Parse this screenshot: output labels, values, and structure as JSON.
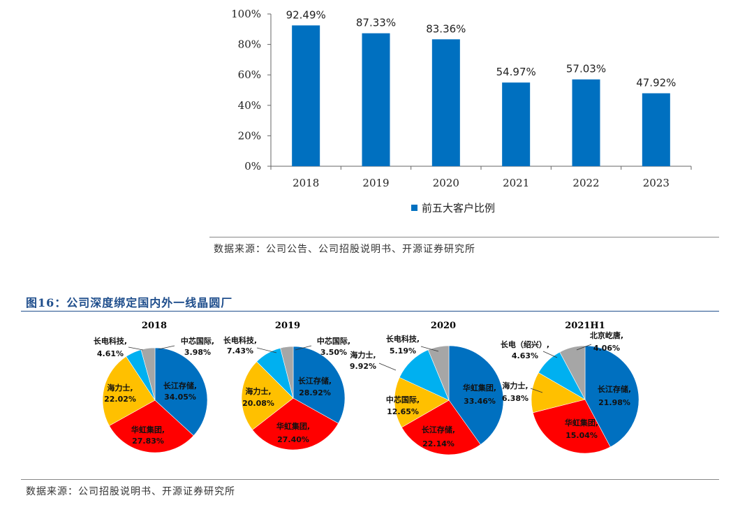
{
  "colors": {
    "bar": "#0070c0",
    "blue": "#0070c0",
    "red": "#ff0000",
    "yellow": "#ffc000",
    "cyan": "#00b0f0",
    "gray": "#a6a6a6",
    "title": "#1f4e8c"
  },
  "bar_source": "数据来源：公司公告、公司招股说明书、开源证券研究所",
  "figure16_title": "图16：公司深度绑定国内外一线晶圆厂",
  "pie_source": "数据来源：公司招股说明书、开源证券研究所",
  "chart_data": [
    {
      "type": "bar",
      "categories": [
        "2018",
        "2019",
        "2020",
        "2021",
        "2022",
        "2023"
      ],
      "series": [
        {
          "name": "前五大客户比例",
          "values": [
            92.49,
            87.33,
            83.36,
            54.97,
            57.03,
            47.92
          ]
        }
      ],
      "value_labels": [
        "92.49%",
        "87.33%",
        "83.36%",
        "54.97%",
        "57.03%",
        "47.92%"
      ],
      "y_ticks": [
        "0%",
        "20%",
        "40%",
        "60%",
        "80%",
        "100%"
      ],
      "ylim": [
        0,
        100
      ],
      "legend_position": "bottom",
      "grid": false
    },
    {
      "type": "pie",
      "title": "2018",
      "slices": [
        {
          "label": "长江存储,",
          "value_label": "34.05%",
          "value": 34.05,
          "color": "#0070c0"
        },
        {
          "label": "华虹集团,",
          "value_label": "27.83%",
          "value": 27.83,
          "color": "#ff0000"
        },
        {
          "label": "海力士,",
          "value_label": "22.02%",
          "value": 22.02,
          "color": "#ffc000"
        },
        {
          "label": "长电科技,",
          "value_label": "4.61%",
          "value": 4.61,
          "color": "#00b0f0"
        },
        {
          "label": "中芯国际,",
          "value_label": "3.98%",
          "value": 3.98,
          "color": "#a6a6a6"
        }
      ]
    },
    {
      "type": "pie",
      "title": "2019",
      "slices": [
        {
          "label": "长江存储,",
          "value_label": "28.92%",
          "value": 28.92,
          "color": "#0070c0"
        },
        {
          "label": "华虹集团,",
          "value_label": "27.40%",
          "value": 27.4,
          "color": "#ff0000"
        },
        {
          "label": "海力士,",
          "value_label": "20.08%",
          "value": 20.08,
          "color": "#ffc000"
        },
        {
          "label": "长电科技,",
          "value_label": "7.43%",
          "value": 7.43,
          "color": "#00b0f0"
        },
        {
          "label": "中芯国际,",
          "value_label": "3.50%",
          "value": 3.5,
          "color": "#a6a6a6"
        }
      ]
    },
    {
      "type": "pie",
      "title": "2020",
      "slices": [
        {
          "label": "华虹集团,",
          "value_label": "33.46%",
          "value": 33.46,
          "color": "#0070c0"
        },
        {
          "label": "长江存储,",
          "value_label": "22.14%",
          "value": 22.14,
          "color": "#ff0000"
        },
        {
          "label": "中芯国际,",
          "value_label": "12.65%",
          "value": 12.65,
          "color": "#ffc000"
        },
        {
          "label": "海力士,",
          "value_label": "9.92%",
          "value": 9.92,
          "color": "#00b0f0"
        },
        {
          "label": "长电科技,",
          "value_label": "5.19%",
          "value": 5.19,
          "color": "#a6a6a6"
        }
      ]
    },
    {
      "type": "pie",
      "title": "2021H1",
      "slices": [
        {
          "label": "长江存储,",
          "value_label": "21.98%",
          "value": 21.98,
          "color": "#0070c0"
        },
        {
          "label": "华虹集团,",
          "value_label": "15.04%",
          "value": 15.04,
          "color": "#ff0000"
        },
        {
          "label": "海力士,",
          "value_label": "6.38%",
          "value": 6.38,
          "color": "#ffc000"
        },
        {
          "label": "长电（绍兴）,",
          "value_label": "4.63%",
          "value": 4.63,
          "color": "#00b0f0"
        },
        {
          "label": "北京屹唐,",
          "value_label": "4.06%",
          "value": 4.06,
          "color": "#a6a6a6"
        }
      ]
    }
  ]
}
